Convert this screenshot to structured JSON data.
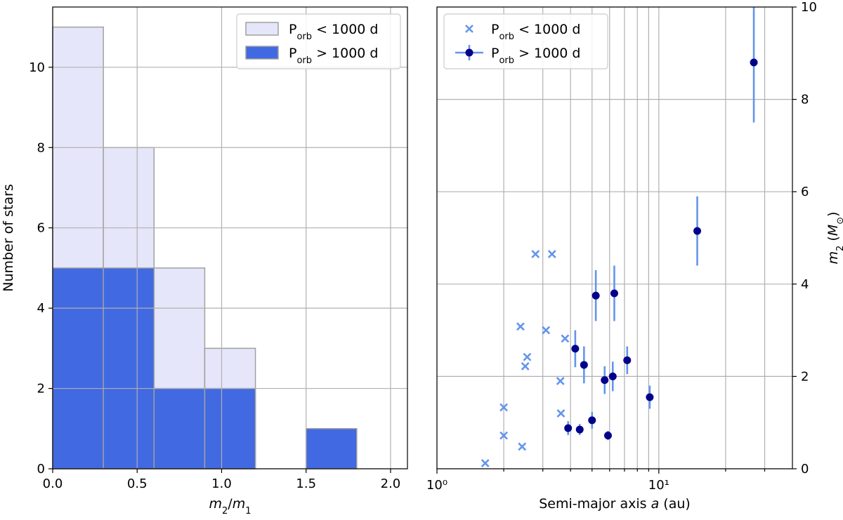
{
  "chart_data": [
    {
      "type": "bar",
      "subtype": "histogram",
      "xlabel": "m2/m1",
      "ylabel": "Number of stars",
      "xlim": [
        0.0,
        2.1
      ],
      "ylim": [
        0,
        11.5
      ],
      "xticks": [
        "0.0",
        "0.5",
        "1.0",
        "1.5",
        "2.0"
      ],
      "yticks": [
        "0",
        "2",
        "4",
        "6",
        "8",
        "10"
      ],
      "grid": true,
      "legend_position": "top-right",
      "bin_edges": [
        0.0,
        0.3,
        0.6,
        0.9,
        1.2,
        1.5,
        1.8
      ],
      "series": [
        {
          "name": "P_orb < 1000 d",
          "name_main": "P",
          "name_sub": "orb",
          "name_rest": " < 1000 d",
          "color": "#e6e6fa",
          "edge": "#a0a0a0",
          "values": [
            11,
            8,
            5,
            3,
            0,
            0
          ]
        },
        {
          "name": "P_orb > 1000 d",
          "name_main": "P",
          "name_sub": "orb",
          "name_rest": " > 1000 d",
          "color": "#4169e1",
          "edge": "#a0a0a0",
          "values": [
            5,
            5,
            2,
            2,
            0,
            1
          ]
        }
      ]
    },
    {
      "type": "scatter",
      "xlabel": "Semi-major axis a (au)",
      "ylabel": "m2 (M⊙)",
      "xscale": "log",
      "xlim": [
        1,
        40
      ],
      "ylim": [
        0,
        10
      ],
      "xticks": [
        "10⁰",
        "10¹"
      ],
      "yticks": [
        "0",
        "2",
        "4",
        "6",
        "8",
        "10"
      ],
      "grid": true,
      "legend_position": "top-left",
      "series": [
        {
          "name": "P_orb < 1000 d",
          "name_main": "P",
          "name_sub": "orb",
          "name_rest": " < 1000 d",
          "marker": "x",
          "color": "#6495ed",
          "points": [
            {
              "x": 1.65,
              "y": 0.12
            },
            {
              "x": 2.0,
              "y": 1.33
            },
            {
              "x": 2.0,
              "y": 0.72
            },
            {
              "x": 2.38,
              "y": 3.08
            },
            {
              "x": 2.42,
              "y": 0.48
            },
            {
              "x": 2.5,
              "y": 2.22
            },
            {
              "x": 2.55,
              "y": 2.42
            },
            {
              "x": 2.78,
              "y": 4.65
            },
            {
              "x": 3.1,
              "y": 3.0
            },
            {
              "x": 3.3,
              "y": 4.65
            },
            {
              "x": 3.6,
              "y": 1.9
            },
            {
              "x": 3.62,
              "y": 1.2
            },
            {
              "x": 3.78,
              "y": 2.82
            }
          ]
        },
        {
          "name": "P_orb > 1000 d",
          "name_main": "P",
          "name_sub": "orb",
          "name_rest": " > 1000 d",
          "marker": "o",
          "color": "#00008b",
          "errcolor": "#6495ed",
          "points": [
            {
              "x": 3.9,
              "y": 0.88,
              "err": 0.15
            },
            {
              "x": 4.2,
              "y": 2.6,
              "err": 0.4
            },
            {
              "x": 4.4,
              "y": 0.85,
              "err": 0.12
            },
            {
              "x": 4.6,
              "y": 2.25,
              "err": 0.4
            },
            {
              "x": 5.0,
              "y": 1.05,
              "err": 0.18
            },
            {
              "x": 5.2,
              "y": 3.75,
              "err": 0.55
            },
            {
              "x": 5.7,
              "y": 1.92,
              "err": 0.3
            },
            {
              "x": 5.9,
              "y": 0.72,
              "err": 0.1
            },
            {
              "x": 6.2,
              "y": 2.0,
              "err": 0.32
            },
            {
              "x": 6.3,
              "y": 3.8,
              "err": 0.6
            },
            {
              "x": 7.2,
              "y": 2.35,
              "err": 0.3
            },
            {
              "x": 9.1,
              "y": 1.55,
              "err": 0.25
            },
            {
              "x": 14.9,
              "y": 5.15,
              "err": 0.75
            },
            {
              "x": 26.8,
              "y": 8.8,
              "err": 1.3
            }
          ]
        }
      ]
    }
  ]
}
